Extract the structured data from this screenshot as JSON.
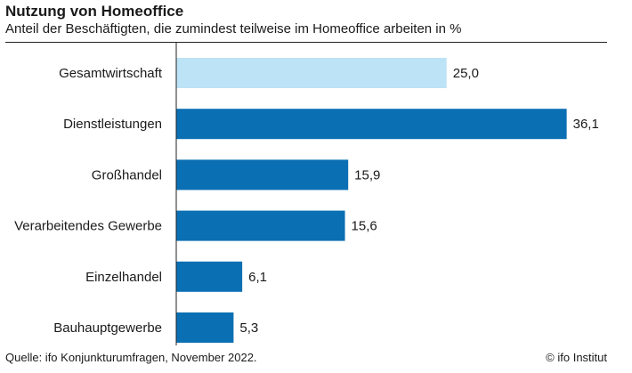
{
  "header": {
    "title": "Nutzung von Homeoffice",
    "subtitle": "Anteil der Beschäftigten, die zumindest teilweise im Homeoffice arbeiten in %"
  },
  "footer": {
    "source": "Quelle: ifo Konjunkturumfragen, November 2022.",
    "copyright": "© ifo Institut"
  },
  "colors": {
    "highlight": "#bde3f7",
    "bar": "#0b6fb3",
    "axis": "#222222"
  },
  "chart_data": {
    "type": "bar",
    "orientation": "horizontal",
    "title": "Nutzung von Homeoffice",
    "subtitle": "Anteil der Beschäftigten, die zumindest teilweise im Homeoffice arbeiten in %",
    "categories": [
      "Gesamtwirtschaft",
      "Dienstleistungen",
      "Großhandel",
      "Verarbeitendes Gewerbe",
      "Einzelhandel",
      "Bauhauptgewerbe"
    ],
    "values": [
      25.0,
      36.1,
      15.9,
      15.6,
      6.1,
      5.3
    ],
    "value_labels": [
      "25,0",
      "36,1",
      "15,9",
      "15,6",
      "6,1",
      "5,3"
    ],
    "highlighted_category": "Gesamtwirtschaft",
    "xlim": [
      0,
      40
    ],
    "grid": false,
    "legend": "none"
  }
}
